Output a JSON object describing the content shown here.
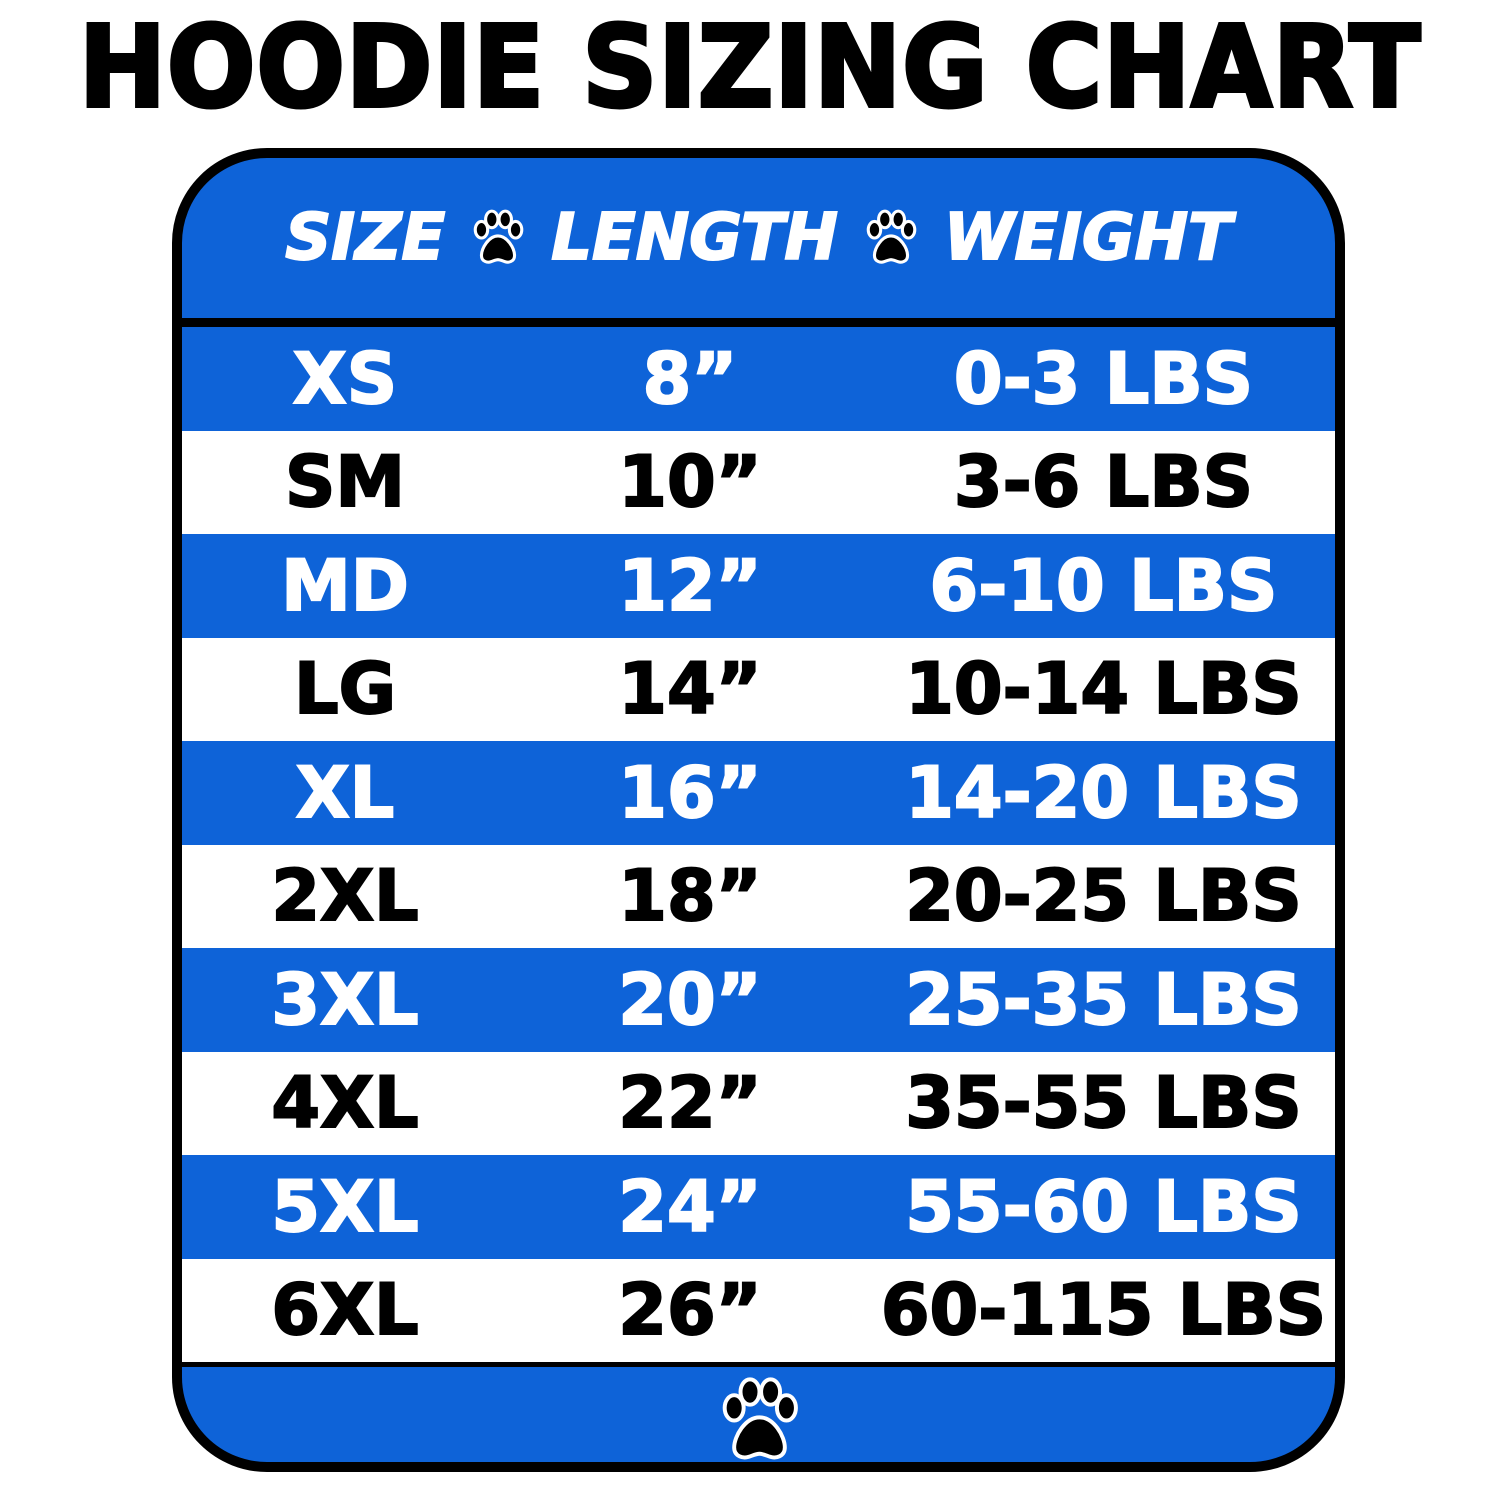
{
  "title": "HOODIE SIZING CHART",
  "colors": {
    "blue": "#0e63d8",
    "white": "#ffffff",
    "border": "#000000"
  },
  "header": {
    "size": "SIZE",
    "length": "LENGTH",
    "weight": "WEIGHT",
    "separator_icon": "paw-icon"
  },
  "rows": [
    {
      "size": "XS",
      "length": "8”",
      "weight": "0-3 LBS"
    },
    {
      "size": "SM",
      "length": "10”",
      "weight": "3-6 LBS"
    },
    {
      "size": "MD",
      "length": "12”",
      "weight": "6-10 LBS"
    },
    {
      "size": "LG",
      "length": "14”",
      "weight": "10-14 LBS"
    },
    {
      "size": "XL",
      "length": "16”",
      "weight": "14-20 LBS"
    },
    {
      "size": "2XL",
      "length": "18”",
      "weight": "20-25 LBS"
    },
    {
      "size": "3XL",
      "length": "20”",
      "weight": "25-35 LBS"
    },
    {
      "size": "4XL",
      "length": "22”",
      "weight": "35-55 LBS"
    },
    {
      "size": "5XL",
      "length": "24”",
      "weight": "55-60 LBS"
    },
    {
      "size": "6XL",
      "length": "26”",
      "weight": "60-115 LBS"
    }
  ],
  "footer": {
    "icon": "paw-icon"
  }
}
